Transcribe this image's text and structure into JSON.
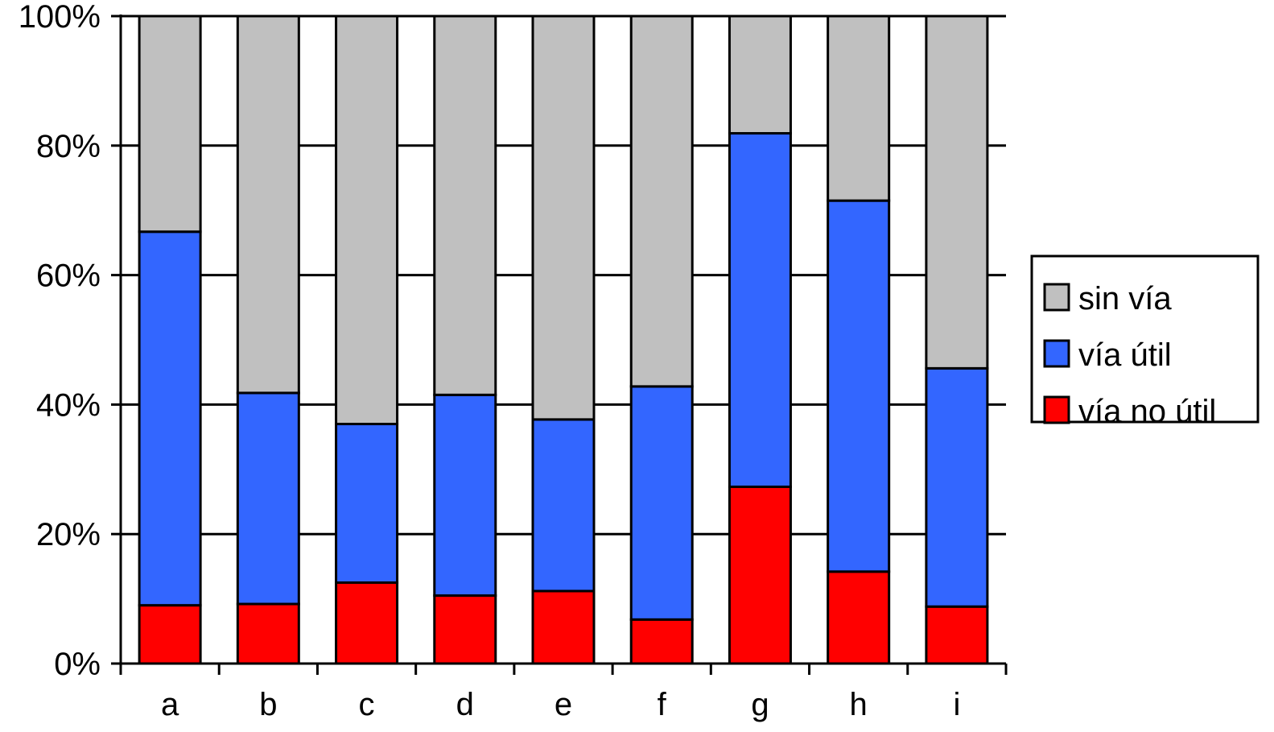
{
  "chart_data": {
    "type": "bar",
    "stacked": true,
    "percent": true,
    "categories": [
      "a",
      "b",
      "c",
      "d",
      "e",
      "f",
      "g",
      "h",
      "i"
    ],
    "series": [
      {
        "name": "vía no útil",
        "color": "#ff0000",
        "values": [
          9,
          9.2,
          12.5,
          10.5,
          11.2,
          6.8,
          27.3,
          14.2,
          8.8
        ]
      },
      {
        "name": "vía útil",
        "color": "#3366ff",
        "values": [
          57.7,
          32.6,
          24.5,
          31,
          26.5,
          36,
          54.6,
          57.3,
          36.8
        ]
      },
      {
        "name": "sin vía",
        "color": "#c0c0c0",
        "values": [
          33.3,
          58.2,
          63,
          58.5,
          62.3,
          57.2,
          18.1,
          28.5,
          54.4
        ]
      }
    ],
    "yticks": [
      "0%",
      "20%",
      "40%",
      "60%",
      "80%",
      "100%"
    ],
    "ylim": [
      0,
      100
    ],
    "grid": true,
    "legend": {
      "position": "right",
      "entries": [
        {
          "label": "sin vía",
          "color": "#c0c0c0"
        },
        {
          "label": "vía útil",
          "color": "#3366ff"
        },
        {
          "label": "vía no útil",
          "color": "#ff0000"
        }
      ]
    }
  }
}
